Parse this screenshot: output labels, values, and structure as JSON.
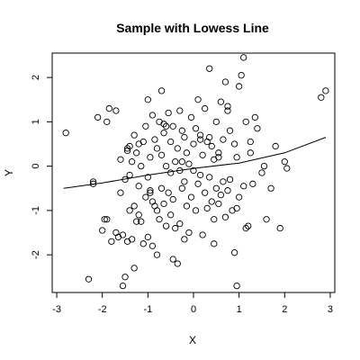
{
  "chart_data": {
    "type": "scatter",
    "title": "Sample with Lowess Line",
    "xlabel": "X",
    "ylabel": "Y",
    "xlim": [
      -3.1,
      3.1
    ],
    "ylim": [
      -2.85,
      2.55
    ],
    "grid": false,
    "x_ticks": [
      -3,
      -2,
      -1,
      0,
      1,
      2,
      3
    ],
    "x_tick_labels": [
      "-3",
      "-2",
      "-1",
      "0",
      "1",
      "2",
      "3"
    ],
    "y_ticks": [
      -2,
      -1,
      0,
      1,
      2
    ],
    "y_tick_labels": [
      "-2",
      "-1",
      "0",
      "1",
      "2"
    ],
    "series": [
      {
        "type": "points",
        "x": [
          -2.8,
          -2.3,
          -2.2,
          -2.2,
          -2.1,
          -2.0,
          -1.95,
          -1.9,
          -1.85,
          -1.8,
          -1.7,
          -1.65,
          -1.6,
          -1.6,
          -1.55,
          -1.5,
          -1.5,
          -1.45,
          -1.45,
          -1.4,
          -1.4,
          -1.4,
          -1.35,
          -1.35,
          -1.3,
          -1.3,
          -1.3,
          -1.25,
          -1.25,
          -1.2,
          -1.2,
          -1.15,
          -1.1,
          -1.1,
          -1.05,
          -1.05,
          -1.0,
          -1.0,
          -1.0,
          -0.95,
          -0.95,
          -0.9,
          -0.9,
          -0.85,
          -0.85,
          -0.8,
          -0.8,
          -0.8,
          -0.75,
          -0.75,
          -0.7,
          -0.7,
          -0.7,
          -0.65,
          -0.65,
          -0.6,
          -0.6,
          -0.55,
          -0.55,
          -0.5,
          -0.5,
          -0.5,
          -0.45,
          -0.45,
          -0.4,
          -0.4,
          -0.35,
          -0.35,
          -0.3,
          -0.3,
          -0.3,
          -0.25,
          -0.25,
          -0.2,
          -0.2,
          -0.2,
          -0.15,
          -0.15,
          -0.1,
          -0.1,
          -0.05,
          -0.05,
          0.0,
          0.0,
          0.05,
          0.05,
          0.1,
          0.1,
          0.15,
          0.15,
          0.2,
          0.2,
          0.25,
          0.25,
          0.3,
          0.3,
          0.35,
          0.35,
          0.4,
          0.4,
          0.45,
          0.45,
          0.5,
          0.5,
          0.55,
          0.55,
          0.6,
          0.6,
          0.65,
          0.65,
          0.7,
          0.7,
          0.75,
          0.75,
          0.8,
          0.8,
          0.85,
          0.9,
          0.9,
          0.95,
          0.95,
          1.0,
          1.0,
          1.05,
          1.1,
          1.1,
          1.15,
          1.2,
          1.25,
          1.3,
          1.35,
          1.4,
          1.5,
          1.55,
          1.6,
          1.7,
          1.8,
          1.9,
          2.0,
          2.05,
          2.8,
          2.9,
          -1.9,
          -1.7,
          -1.2,
          -1.15,
          -0.95,
          -0.6,
          -0.25,
          0.35,
          0.55,
          0.95,
          1.15,
          1.25,
          -1.55,
          -1.45,
          -0.9,
          -0.65,
          -0.45,
          0.15,
          0.45,
          0.75
        ],
        "y": [
          0.75,
          -2.55,
          -0.4,
          -0.35,
          1.1,
          -1.45,
          -1.2,
          1.0,
          1.3,
          -1.7,
          1.25,
          -1.6,
          -0.6,
          0.15,
          -2.7,
          -2.5,
          -0.3,
          -1.7,
          0.35,
          -1.0,
          -0.2,
          0.45,
          -1.65,
          0.1,
          -2.3,
          -0.9,
          0.7,
          -1.25,
          0.3,
          -1.1,
          -0.45,
          0.0,
          -1.75,
          0.55,
          -0.7,
          0.9,
          -1.6,
          -0.25,
          1.5,
          -0.55,
          0.2,
          -1.8,
          1.15,
          -0.9,
          0.6,
          -2.0,
          -1.0,
          0.4,
          -1.2,
          1.0,
          -0.5,
          0.25,
          1.7,
          -0.85,
          0.75,
          -1.35,
          0.0,
          -0.6,
          1.2,
          -1.1,
          -0.15,
          0.55,
          -0.75,
          0.9,
          -1.4,
          0.1,
          -2.2,
          0.4,
          -1.3,
          -0.1,
          1.25,
          -0.5,
          0.8,
          -1.65,
          -0.35,
          0.65,
          -0.9,
          0.3,
          -1.5,
          0.05,
          -0.7,
          1.1,
          -0.1,
          0.5,
          -1.0,
          0.85,
          -0.4,
          1.5,
          -0.2,
          0.7,
          -1.55,
          0.25,
          -0.6,
          1.3,
          -0.95,
          0.55,
          -0.25,
          2.2,
          -0.8,
          0.45,
          -1.2,
          0.15,
          -0.5,
          1.0,
          -0.85,
          0.3,
          -0.65,
          1.45,
          -0.35,
          0.6,
          -1.15,
          1.9,
          -0.55,
          1.25,
          -0.3,
          0.8,
          -1.0,
          0.5,
          -1.95,
          0.2,
          -2.7,
          -0.7,
          1.8,
          2.05,
          -0.45,
          2.45,
          -1.4,
          -1.35,
          0.55,
          -0.4,
          1.1,
          0.85,
          -0.15,
          0.0,
          -1.2,
          -0.5,
          0.45,
          -1.4,
          0.1,
          -0.05,
          1.55,
          1.7,
          -1.2,
          -1.5,
          0.5,
          -1.25,
          -0.6,
          0.9,
          0.1,
          0.65,
          0.2,
          -0.95,
          1.0,
          0.3,
          -1.55,
          0.4,
          -0.8,
          0.95,
          -2.1,
          0.6,
          -1.75,
          1.35
        ],
        "marker": "open-circle"
      },
      {
        "type": "line",
        "x": [
          -2.85,
          -2.0,
          -1.0,
          0.0,
          1.0,
          2.0,
          2.9
        ],
        "y": [
          -0.5,
          -0.38,
          -0.2,
          -0.05,
          0.07,
          0.3,
          0.65
        ]
      }
    ]
  }
}
